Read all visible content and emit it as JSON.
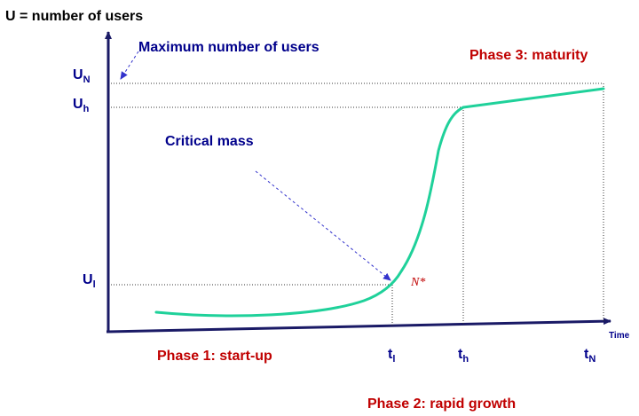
{
  "y_axis_title": "U = number of users",
  "x_axis_title": "Time",
  "annotations": {
    "maximum": "Maximum number of users",
    "critical_mass": "Critical mass",
    "n_star": "N*"
  },
  "y_ticks": [
    {
      "main": "U",
      "sub": "N"
    },
    {
      "main": "U",
      "sub": "h"
    },
    {
      "main": "U",
      "sub": "l"
    }
  ],
  "x_ticks": [
    {
      "main": "t",
      "sub": "l"
    },
    {
      "main": "t",
      "sub": "h"
    },
    {
      "main": "t",
      "sub": "N"
    }
  ],
  "phases": {
    "phase1": "Phase 1: start-up",
    "phase2": "Phase 2: rapid growth",
    "phase3": "Phase 3: maturity"
  },
  "colors": {
    "axis": "#1a1a66",
    "navy_text": "#00008b",
    "red_text": "#c00000",
    "curve": "#1fd19a",
    "guide": "#333333",
    "arrow": "#3333cc"
  }
}
